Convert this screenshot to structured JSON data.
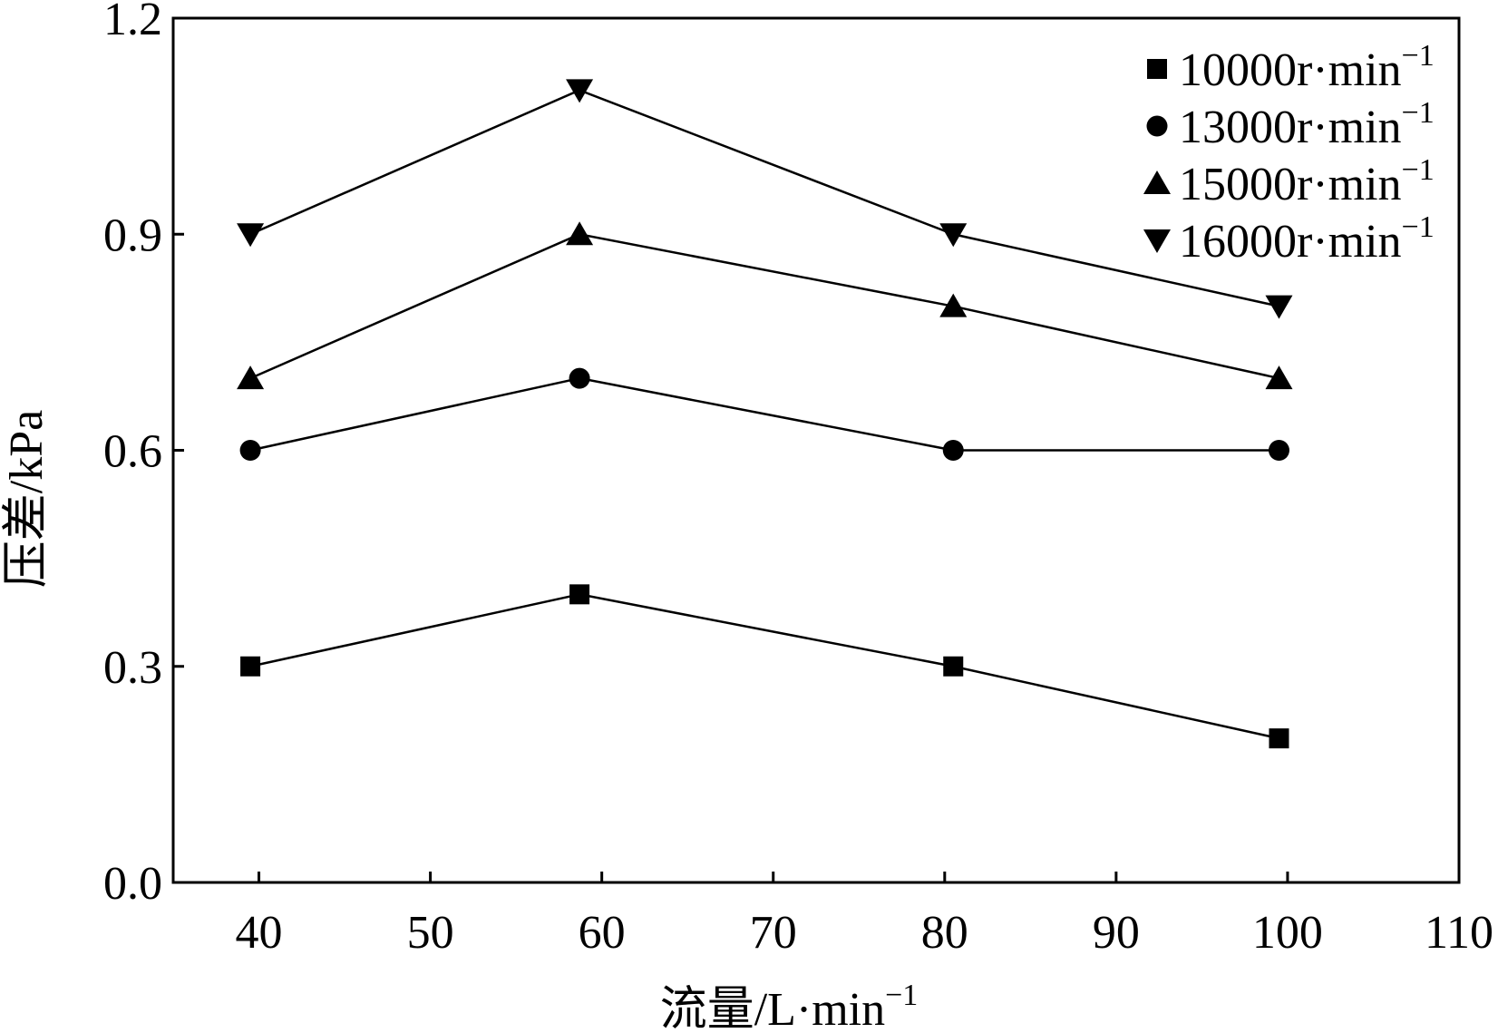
{
  "chart_data": {
    "type": "line",
    "title": "",
    "xlabel": "流量/L·min",
    "xlabel_sup": "−1",
    "ylabel": "压差/kPa",
    "xlim": [
      35,
      110
    ],
    "ylim": [
      0.0,
      1.2
    ],
    "x_ticks": [
      40,
      50,
      60,
      70,
      80,
      90,
      100,
      110
    ],
    "x_tick_labels": [
      "40",
      "50",
      "60",
      "70",
      "80",
      "90",
      "100",
      "110"
    ],
    "y_ticks": [
      0.0,
      0.3,
      0.6,
      0.9,
      1.2
    ],
    "y_tick_labels": [
      "0.0",
      "0.3",
      "0.6",
      "0.9",
      "1.2"
    ],
    "grid": false,
    "legend_position": "top-right",
    "x": [
      39.5,
      58.7,
      80.5,
      99.5
    ],
    "series": [
      {
        "name": "10000r·min",
        "name_sup": "−1",
        "marker": "square",
        "values": [
          0.3,
          0.4,
          0.3,
          0.2
        ]
      },
      {
        "name": "13000r·min",
        "name_sup": "−1",
        "marker": "circle",
        "values": [
          0.6,
          0.7,
          0.6,
          0.6
        ]
      },
      {
        "name": "15000r·min",
        "name_sup": "−1",
        "marker": "triangle-up",
        "values": [
          0.7,
          0.9,
          0.8,
          0.7
        ]
      },
      {
        "name": "16000r·min",
        "name_sup": "−1",
        "marker": "triangle-down",
        "values": [
          0.9,
          1.1,
          0.9,
          0.8
        ]
      }
    ],
    "colors": {
      "line": "#000000",
      "marker": "#000000",
      "frame": "#000000"
    }
  }
}
